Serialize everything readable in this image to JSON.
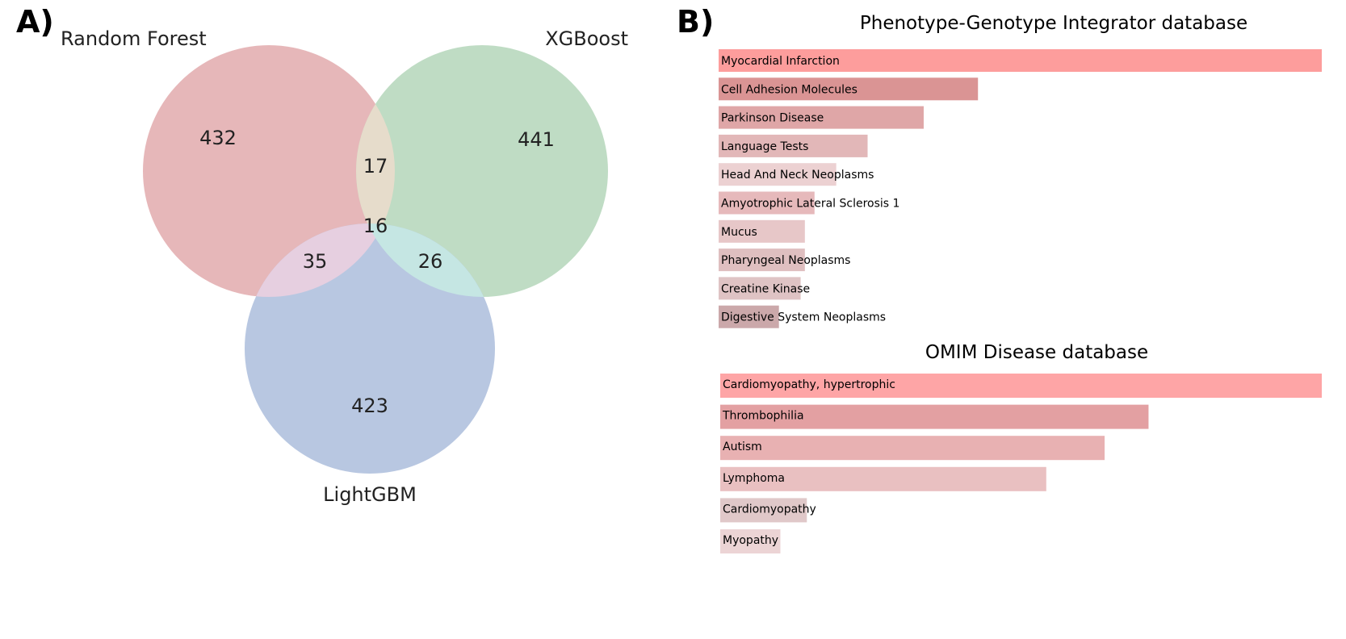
{
  "panels": {
    "a_label": "A)",
    "b_label": "B)"
  },
  "chart_data": [
    {
      "type": "venn",
      "sets": [
        "Random Forest",
        "XGBoost",
        "LightGBM"
      ],
      "regions": {
        "random_forest_only": 432,
        "xgboost_only": 441,
        "lightgbm_only": 423,
        "random_forest_xgboost": 17,
        "random_forest_lightgbm": 35,
        "xgboost_lightgbm": 26,
        "all_three": 16
      },
      "colors": {
        "random_forest": "#e6b7b9",
        "xgboost": "#bfdcc4",
        "lightgbm": "#b8c7e1",
        "random_forest_xgboost": "#e6dccb",
        "random_forest_lightgbm": "#e6cfe0",
        "xgboost_lightgbm": "#c5e6e3"
      }
    },
    {
      "type": "bar",
      "orientation": "horizontal",
      "title": "Phenotype-Genotype Integrator database",
      "categories": [
        "Myocardial Infarction",
        "Cell Adhesion Molecules",
        "Parkinson Disease",
        "Language Tests",
        "Head And Neck Neoplasms",
        "Amyotrophic Lateral Sclerosis 1",
        "Mucus",
        "Pharyngeal Neoplasms",
        "Creatine Kinase",
        "Digestive System Neoplasms"
      ],
      "values": [
        100,
        43,
        34,
        24.7,
        19.5,
        15.9,
        14.3,
        14.3,
        13.6,
        10
      ],
      "colors": [
        "#fd9d9c",
        "#da9494",
        "#dfa6a7",
        "#e2b7b8",
        "#ecd1d2",
        "#e6b9bb",
        "#e7c7c8",
        "#dfbfc0",
        "#dfc3c4",
        "#cba8aa"
      ],
      "xlim": [
        0,
        100
      ]
    },
    {
      "type": "bar",
      "orientation": "horizontal",
      "title": "OMIM Disease database",
      "categories": [
        "Cardiomyopathy, hypertrophic",
        "Thrombophilia",
        "Autism",
        "Lymphoma",
        "Cardiomyopathy",
        "Myopathy"
      ],
      "values": [
        100,
        71.2,
        63.9,
        54.2,
        14.4,
        10
      ],
      "colors": [
        "#fea5a6",
        "#e3a0a2",
        "#e8b1b2",
        "#e9c0c1",
        "#e0c8c9",
        "#ecd4d5"
      ],
      "xlim": [
        0,
        100
      ]
    }
  ]
}
